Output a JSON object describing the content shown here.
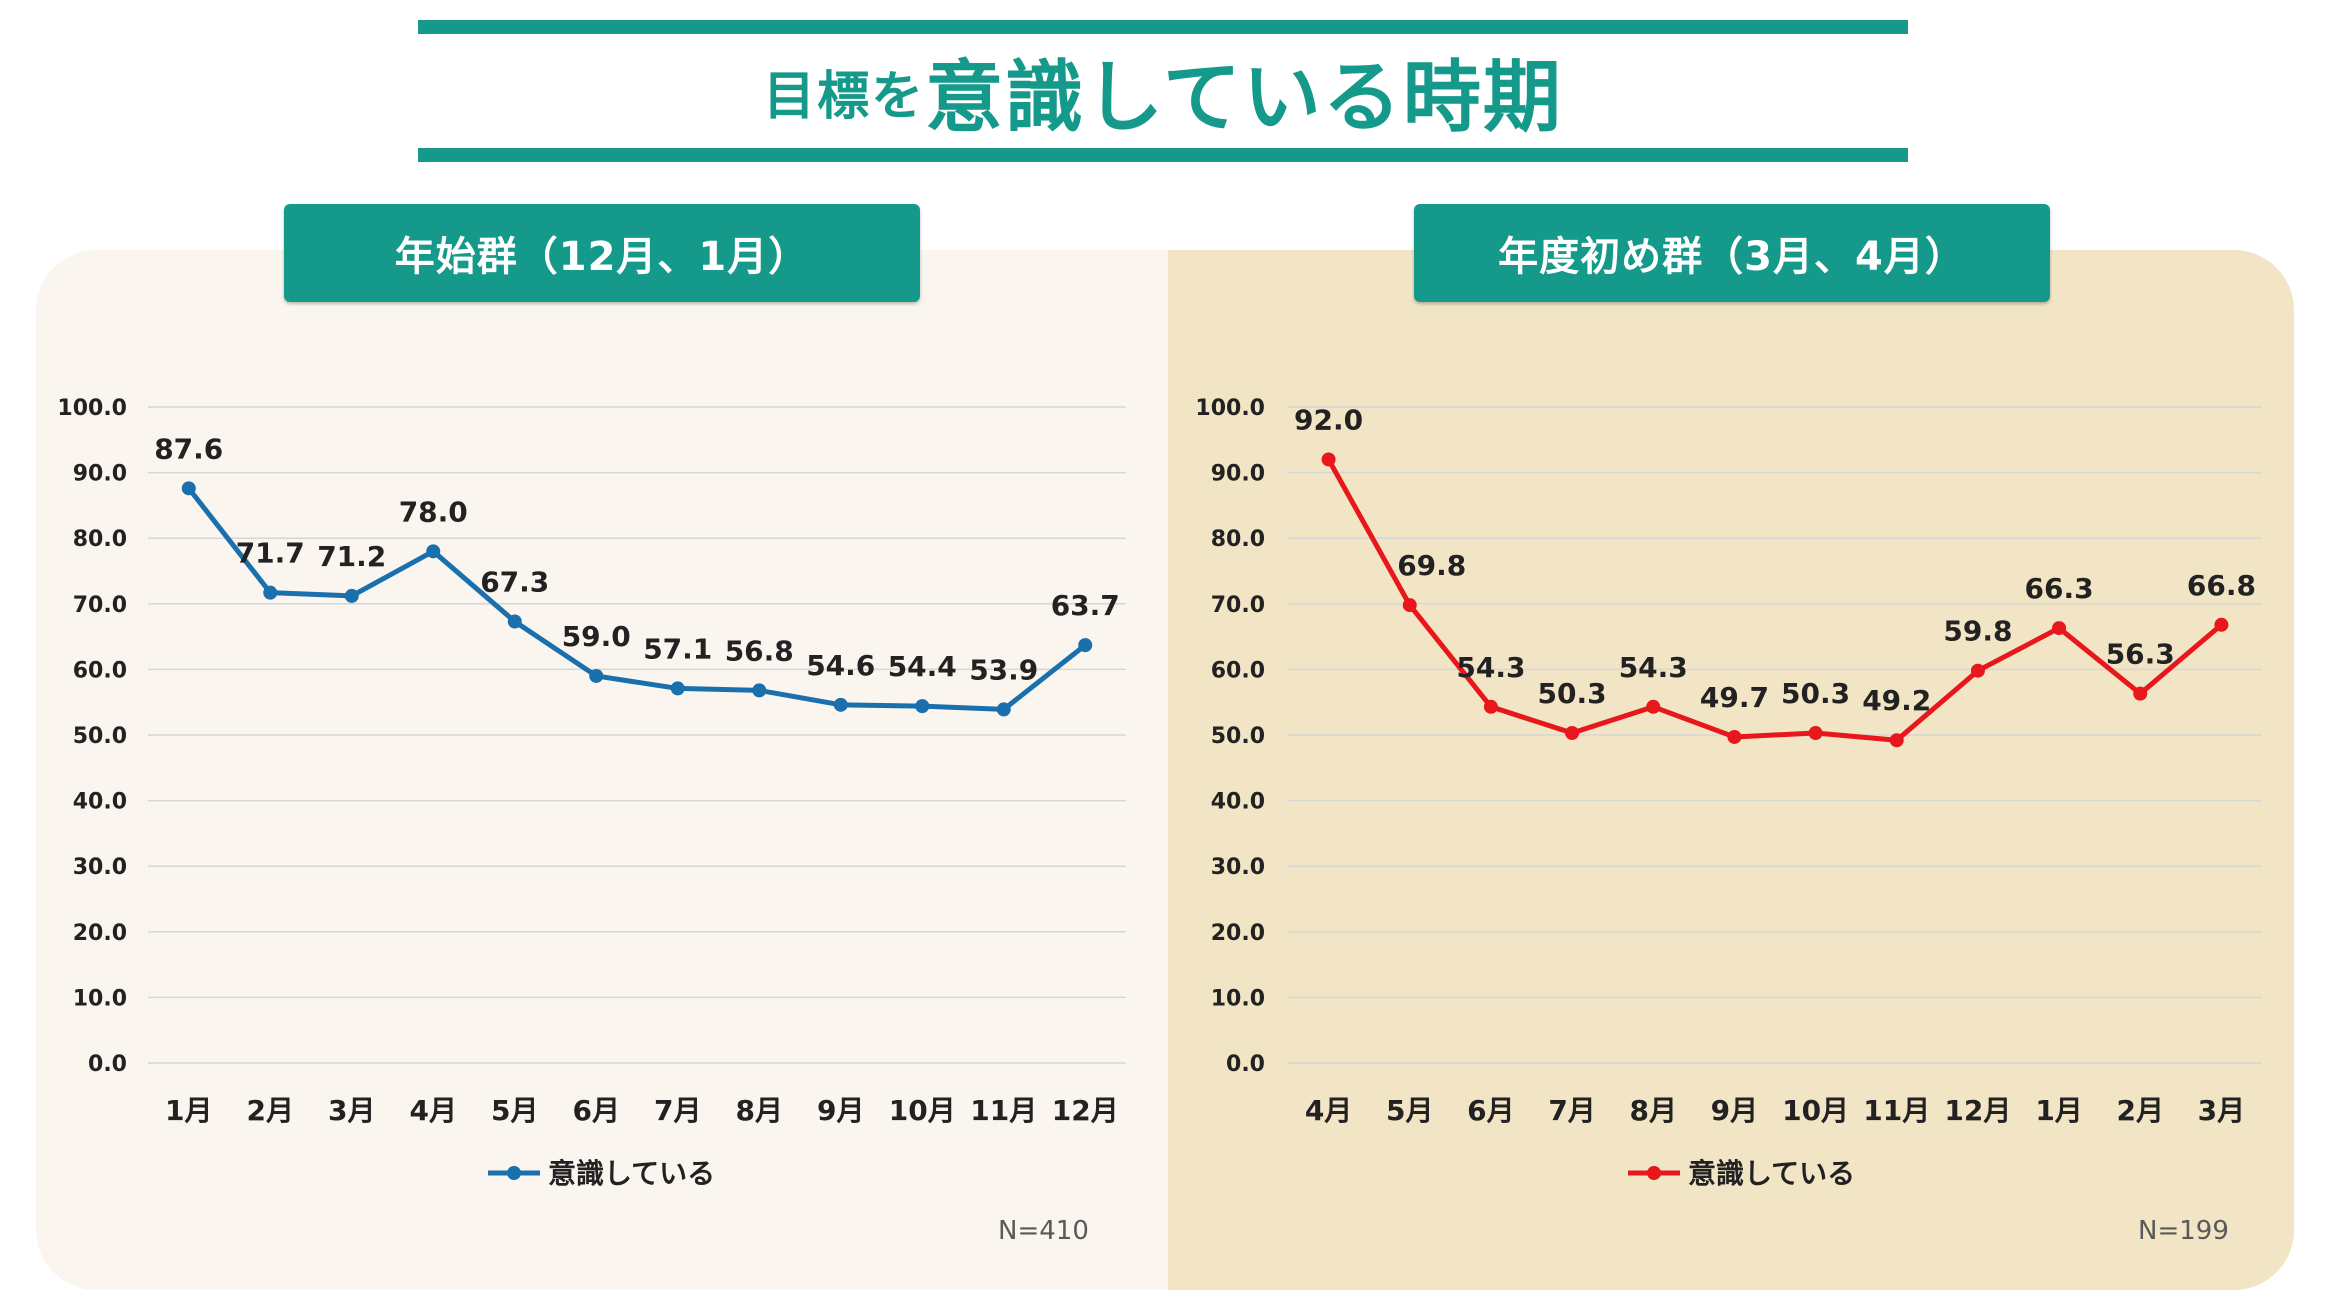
{
  "title": {
    "prefix": "目標を",
    "main": "意識している時期"
  },
  "panels": {
    "left": {
      "header": "年始群（12月、1月）",
      "n": "N=410"
    },
    "right": {
      "header": "年度初め群（3月、4月）",
      "n": "N=199"
    }
  },
  "colors": {
    "accent": "#15998a",
    "left_series": "#1a6fad",
    "right_series": "#e8171b"
  },
  "chart_data": [
    {
      "type": "line",
      "title": "年始群（12月、1月）",
      "categories": [
        "1月",
        "2月",
        "3月",
        "4月",
        "5月",
        "6月",
        "7月",
        "8月",
        "9月",
        "10月",
        "11月",
        "12月"
      ],
      "series": [
        {
          "name": "意識している",
          "values": [
            87.6,
            71.7,
            71.2,
            78.0,
            67.3,
            59.0,
            57.1,
            56.8,
            54.6,
            54.4,
            53.9,
            63.7
          ]
        }
      ],
      "ylim": [
        0,
        100
      ],
      "yticks": [
        "0.0",
        "10.0",
        "20.0",
        "30.0",
        "40.0",
        "50.0",
        "60.0",
        "70.0",
        "80.0",
        "90.0",
        "100.0"
      ],
      "legend": "bottom",
      "grid": true
    },
    {
      "type": "line",
      "title": "年度初め群（3月、4月）",
      "categories": [
        "4月",
        "5月",
        "6月",
        "7月",
        "8月",
        "9月",
        "10月",
        "11月",
        "12月",
        "1月",
        "2月",
        "3月"
      ],
      "series": [
        {
          "name": "意識している",
          "values": [
            92.0,
            69.8,
            54.3,
            50.3,
            54.3,
            49.7,
            50.3,
            49.2,
            59.8,
            66.3,
            56.3,
            66.8
          ]
        }
      ],
      "ylim": [
        0,
        100
      ],
      "yticks": [
        "0.0",
        "10.0",
        "20.0",
        "30.0",
        "40.0",
        "50.0",
        "60.0",
        "70.0",
        "80.0",
        "90.0",
        "100.0"
      ],
      "legend": "bottom",
      "grid": true
    }
  ]
}
